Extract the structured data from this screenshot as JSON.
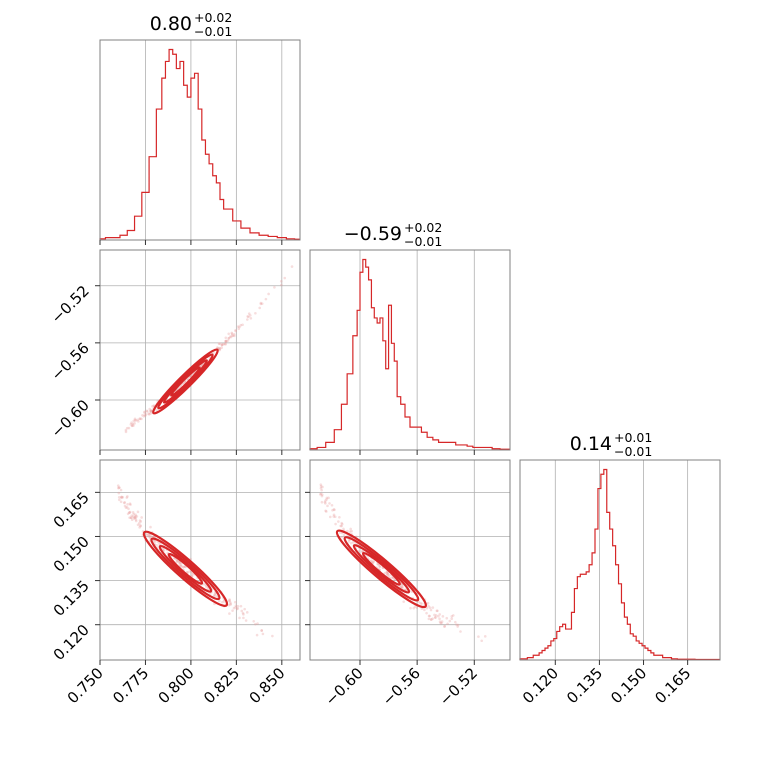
{
  "chart_data": {
    "type": "corner",
    "color": "#d62728",
    "parameters": [
      {
        "title": {
          "value": "0.80",
          "plus": "+0.02",
          "minus": "−0.01"
        },
        "range": [
          0.75,
          0.86
        ],
        "ticks": [
          0.75,
          0.775,
          0.8,
          0.825,
          0.85
        ],
        "tick_labels": [
          "0.750",
          "0.775",
          "0.800",
          "0.825",
          "0.850"
        ],
        "hist": {
          "x": [
            0.751,
            0.755,
            0.759,
            0.763,
            0.767,
            0.771,
            0.775,
            0.779,
            0.783,
            0.785,
            0.787,
            0.789,
            0.791,
            0.793,
            0.795,
            0.797,
            0.799,
            0.801,
            0.803,
            0.805,
            0.807,
            0.809,
            0.811,
            0.813,
            0.815,
            0.817,
            0.819,
            0.821,
            0.825,
            0.83,
            0.835,
            0.84,
            0.845,
            0.85,
            0.855,
            0.859
          ],
          "y": [
            0.5,
            1,
            1,
            2,
            4,
            10,
            20,
            35,
            55,
            68,
            75,
            80,
            78,
            72,
            75,
            65,
            60,
            68,
            70,
            55,
            42,
            36,
            32,
            27,
            24,
            17,
            13,
            13,
            8,
            5,
            3,
            2,
            1.5,
            1,
            0.5,
            0.3
          ]
        }
      },
      {
        "title": {
          "value": "−0.59",
          "plus": "+0.02",
          "minus": "−0.01"
        },
        "range": [
          -0.635,
          -0.495
        ],
        "ticks": [
          -0.6,
          -0.56,
          -0.52
        ],
        "tick_labels": [
          "−0.60",
          "−0.56",
          "−0.52"
        ],
        "hist": {
          "x": [
            -0.633,
            -0.627,
            -0.621,
            -0.615,
            -0.611,
            -0.607,
            -0.603,
            -0.601,
            -0.599,
            -0.597,
            -0.595,
            -0.593,
            -0.591,
            -0.589,
            -0.587,
            -0.585,
            -0.583,
            -0.581,
            -0.579,
            -0.577,
            -0.575,
            -0.573,
            -0.57,
            -0.567,
            -0.563,
            -0.559,
            -0.555,
            -0.551,
            -0.547,
            -0.543,
            -0.539,
            -0.535,
            -0.531,
            -0.527,
            -0.523,
            -0.519,
            -0.515,
            -0.51,
            -0.505,
            -0.499
          ],
          "y": [
            0.5,
            1,
            3,
            8,
            18,
            30,
            45,
            55,
            70,
            75,
            72,
            67,
            56,
            52,
            50,
            52,
            43,
            32,
            57,
            42,
            35,
            21,
            18,
            13,
            9,
            9,
            7,
            5,
            4,
            3,
            3,
            3,
            2,
            2,
            1.5,
            1,
            1,
            1,
            0.5,
            0.3
          ]
        }
      },
      {
        "title": {
          "value": "0.14",
          "plus": "+0.01",
          "minus": "−0.01"
        },
        "range": [
          0.108,
          0.176
        ],
        "ticks": [
          0.12,
          0.135,
          0.15,
          0.165
        ],
        "tick_labels": [
          "0.120",
          "0.135",
          "0.150",
          "0.165"
        ],
        "hist": {
          "x": [
            0.109,
            0.11,
            0.111,
            0.112,
            0.113,
            0.114,
            0.115,
            0.116,
            0.117,
            0.118,
            0.119,
            0.12,
            0.121,
            0.122,
            0.123,
            0.124,
            0.125,
            0.126,
            0.127,
            0.128,
            0.129,
            0.13,
            0.131,
            0.132,
            0.133,
            0.134,
            0.135,
            0.136,
            0.137,
            0.138,
            0.139,
            0.14,
            0.141,
            0.142,
            0.143,
            0.144,
            0.145,
            0.146,
            0.147,
            0.148,
            0.149,
            0.15,
            0.151,
            0.152,
            0.153,
            0.154,
            0.155,
            0.156,
            0.157,
            0.158,
            0.159,
            0.16,
            0.161,
            0.162,
            0.163,
            0.164,
            0.165,
            0.17,
            0.175
          ],
          "y": [
            0.5,
            0.5,
            1,
            1,
            2,
            2,
            3,
            4,
            5,
            6,
            8,
            9,
            12,
            14,
            15,
            13,
            13,
            20,
            30,
            35,
            36,
            36,
            37,
            40,
            45,
            55,
            72,
            78,
            80,
            62,
            55,
            48,
            40,
            32,
            24,
            18,
            15,
            11,
            10,
            8,
            7,
            6,
            5,
            4,
            3,
            2,
            2,
            2,
            1,
            1,
            1,
            0.5,
            0.5,
            0.3,
            0.3,
            0.3,
            0.3,
            0.2,
            0.2
          ]
        }
      }
    ],
    "correlations": {
      "p1_vs_p0": {
        "curve_x": [
          0.765,
          0.772,
          0.78,
          0.79,
          0.8,
          0.81,
          0.82,
          0.83,
          0.84,
          0.85,
          0.858
        ],
        "curve_y": [
          -0.62,
          -0.613,
          -0.605,
          -0.594,
          -0.583,
          -0.571,
          -0.558,
          -0.545,
          -0.531,
          -0.516,
          -0.503
        ]
      },
      "p2_vs_p0": {
        "curve_x": [
          0.76,
          0.768,
          0.775,
          0.785,
          0.795,
          0.805,
          0.815,
          0.825,
          0.835,
          0.845,
          0.855
        ],
        "curve_y": [
          0.165,
          0.158,
          0.151,
          0.146,
          0.14,
          0.135,
          0.13,
          0.125,
          0.121,
          0.117,
          0.113
        ]
      },
      "p2_vs_p1": {
        "curve_x": [
          -0.628,
          -0.62,
          -0.61,
          -0.6,
          -0.59,
          -0.58,
          -0.57,
          -0.56,
          -0.55,
          -0.54,
          -0.52,
          -0.505
        ],
        "curve_y": [
          0.165,
          0.158,
          0.151,
          0.146,
          0.141,
          0.137,
          0.132,
          0.128,
          0.124,
          0.121,
          0.117,
          0.114
        ]
      }
    },
    "grid": true
  }
}
